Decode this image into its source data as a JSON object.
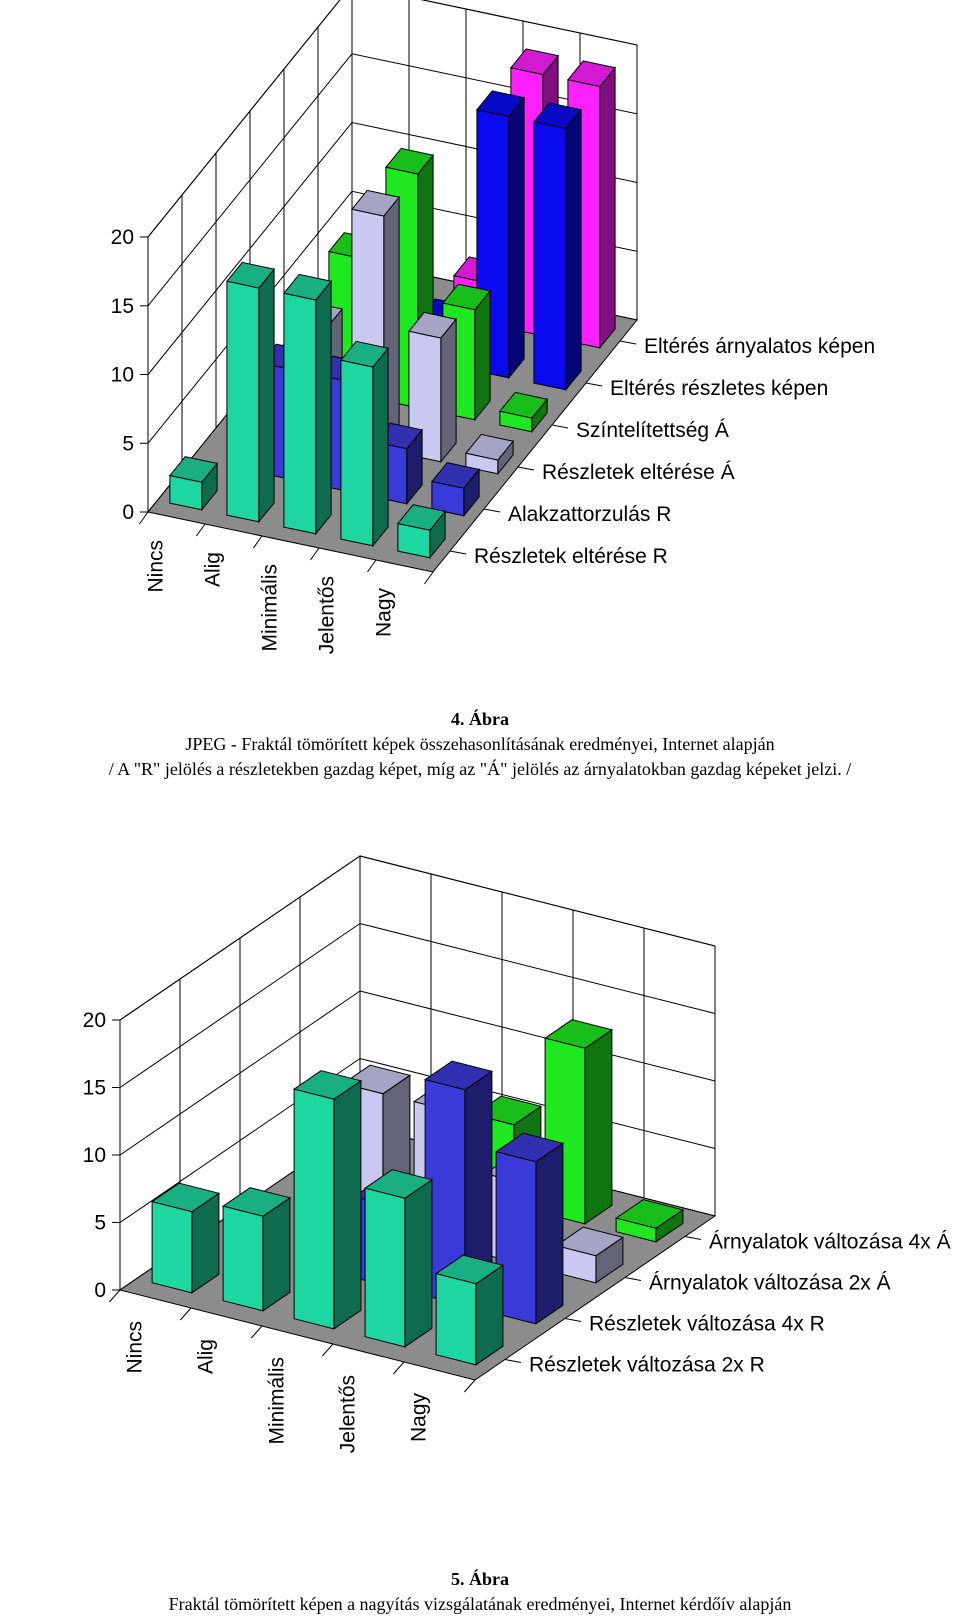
{
  "charts": [
    {
      "figure_label": "4. Ábra",
      "caption_lines": [
        "JPEG - Fraktál tömörített képek összehasonlításának eredményei, Internet alapján",
        "/ A \"R\" jelölés a részletekben gazdag képet, míg az \"Á\" jelölés az árnyalatokban gazdag képeket jelzi. /"
      ],
      "chart_data": {
        "type": "bar3d",
        "title": "",
        "categories": [
          "Nincs",
          "Alig",
          "Minimális",
          "Jelentős",
          "Nagy"
        ],
        "y_ticks": [
          "0",
          "5",
          "10",
          "15",
          "20"
        ],
        "ylim": [
          0,
          20
        ],
        "grid": true,
        "legend": "series labels along the right depth axis",
        "series": [
          {
            "name": "Részletek eltérése R",
            "color": "#1ed6a0",
            "values": [
              2,
              17,
              17,
              13,
              2
            ]
          },
          {
            "name": "Alakzattorzulás R",
            "color": "#3a3ad8",
            "values": [
              0,
              8,
              8,
              4,
              2
            ]
          },
          {
            "name": "Részletek eltérése Á",
            "color": "#c8c8f0",
            "values": [
              0,
              8,
              17,
              9,
              1
            ]
          },
          {
            "name": "Színtelítettség Á",
            "color": "#20e820",
            "values": [
              0,
              10,
              17,
              8,
              1
            ]
          },
          {
            "name": "Eltérés részletes képen",
            "color": "#0a0af0",
            "values": [
              0,
              0,
              3,
              19,
              19
            ]
          },
          {
            "name": "Eltérés árnyalatos képen",
            "color": "#ff20ff",
            "values": [
              0,
              0,
              3,
              19,
              19
            ]
          }
        ]
      }
    },
    {
      "figure_label": "5. Ábra",
      "caption_lines": [
        "Fraktál tömörített képen a nagyítás vizsgálatának eredményei, Internet kérdőív alapján"
      ],
      "chart_data": {
        "type": "bar3d",
        "title": "",
        "categories": [
          "Nincs",
          "Alig",
          "Minimális",
          "Jelentős",
          "Nagy"
        ],
        "y_ticks": [
          "0",
          "5",
          "10",
          "15",
          "20"
        ],
        "ylim": [
          0,
          20
        ],
        "grid": true,
        "legend": "series labels along the right depth axis",
        "series": [
          {
            "name": "Részletek változása 2x R",
            "color": "#1ed6a0",
            "values": [
              6,
              7,
              17,
              11,
              6
            ]
          },
          {
            "name": "Részletek változása 4x R",
            "color": "#3a3ad8",
            "values": [
              0,
              0,
              6,
              16,
              12
            ]
          },
          {
            "name": "Árnyalatok változása 2x Á",
            "color": "#c8c8f0",
            "values": [
              0,
              10,
              10,
              6,
              2
            ]
          },
          {
            "name": "Árnyalatok változása 4x Á",
            "color": "#20e820",
            "values": [
              0,
              0,
              6,
              13,
              1
            ]
          }
        ]
      }
    }
  ]
}
